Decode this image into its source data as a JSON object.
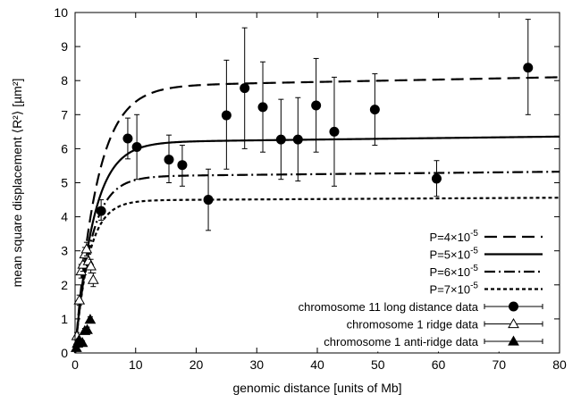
{
  "chart_data": {
    "type": "scatter",
    "xlabel": "genomic distance [units of Mb]",
    "ylabel": "mean square displacement ⟨R²⟩ [µm²]",
    "xlim": [
      0,
      80
    ],
    "ylim": [
      0,
      10
    ],
    "x_ticks": [
      "0",
      "10",
      "20",
      "30",
      "40",
      "50",
      "60",
      "70",
      "80"
    ],
    "y_ticks": [
      "0",
      "1",
      "2",
      "3",
      "4",
      "5",
      "6",
      "7",
      "8",
      "9",
      "10"
    ],
    "grid": false,
    "legend_position": "bottom-right",
    "curves": [
      {
        "label_base": "P=4×10",
        "label_exp": "-5",
        "dash": "long-dash",
        "plateau": 7.82,
        "rate": 0.28,
        "slope": 0.0035
      },
      {
        "label_base": "P=5×10",
        "label_exp": "-5",
        "dash": "solid",
        "plateau": 6.18,
        "rate": 0.33,
        "slope": 0.0022
      },
      {
        "label_base": "P=6×10",
        "label_exp": "-5",
        "dash": "dash-dot",
        "plateau": 5.18,
        "rate": 0.38,
        "slope": 0.0018
      },
      {
        "label_base": "P=7×10",
        "label_exp": "-5",
        "dash": "short-dash",
        "plateau": 4.48,
        "rate": 0.44,
        "slope": 0.001
      }
    ],
    "series": [
      {
        "name": "chromosome 11 long distance data",
        "marker": "filled-circle",
        "points": [
          {
            "x": 4.3,
            "y": 4.17,
            "lo": 3.9,
            "hi": 4.5
          },
          {
            "x": 8.7,
            "y": 6.3,
            "lo": 5.7,
            "hi": 6.9
          },
          {
            "x": 10.2,
            "y": 6.05,
            "lo": 5.1,
            "hi": 7.0
          },
          {
            "x": 15.5,
            "y": 5.68,
            "lo": 5.0,
            "hi": 6.4
          },
          {
            "x": 17.7,
            "y": 5.52,
            "lo": 4.9,
            "hi": 6.1
          },
          {
            "x": 22.0,
            "y": 4.5,
            "lo": 3.6,
            "hi": 5.4
          },
          {
            "x": 25.0,
            "y": 6.98,
            "lo": 5.4,
            "hi": 8.6
          },
          {
            "x": 28.0,
            "y": 7.78,
            "lo": 6.0,
            "hi": 9.55
          },
          {
            "x": 31.0,
            "y": 7.22,
            "lo": 5.9,
            "hi": 8.55
          },
          {
            "x": 34.0,
            "y": 6.27,
            "lo": 5.1,
            "hi": 7.45
          },
          {
            "x": 36.8,
            "y": 6.27,
            "lo": 5.05,
            "hi": 7.5
          },
          {
            "x": 39.8,
            "y": 7.27,
            "lo": 5.9,
            "hi": 8.65
          },
          {
            "x": 42.8,
            "y": 6.5,
            "lo": 4.9,
            "hi": 8.1
          },
          {
            "x": 49.5,
            "y": 7.15,
            "lo": 6.1,
            "hi": 8.2
          },
          {
            "x": 59.7,
            "y": 5.12,
            "lo": 4.6,
            "hi": 5.65
          },
          {
            "x": 74.8,
            "y": 8.38,
            "lo": 7.0,
            "hi": 9.8
          }
        ]
      },
      {
        "name": "chromosome 1 ridge data",
        "marker": "open-triangle",
        "points": [
          {
            "x": 0.3,
            "y": 0.5,
            "lo": 0.4,
            "hi": 0.6
          },
          {
            "x": 0.7,
            "y": 1.55,
            "lo": 1.4,
            "hi": 1.7
          },
          {
            "x": 1.0,
            "y": 2.4,
            "lo": 2.2,
            "hi": 2.6
          },
          {
            "x": 1.3,
            "y": 2.6,
            "lo": 2.4,
            "hi": 2.8
          },
          {
            "x": 1.6,
            "y": 2.9,
            "lo": 2.7,
            "hi": 3.1
          },
          {
            "x": 1.9,
            "y": 3.05,
            "lo": 2.85,
            "hi": 3.25
          },
          {
            "x": 2.2,
            "y": 2.7,
            "lo": 2.5,
            "hi": 2.9
          },
          {
            "x": 2.6,
            "y": 2.55,
            "lo": 2.35,
            "hi": 2.75
          },
          {
            "x": 3.0,
            "y": 2.15,
            "lo": 1.95,
            "hi": 2.35
          }
        ]
      },
      {
        "name": "chromosome 1 anti-ridge data",
        "marker": "filled-triangle",
        "points": [
          {
            "x": 0.2,
            "y": 0.15,
            "lo": 0.1,
            "hi": 0.2
          },
          {
            "x": 0.4,
            "y": 0.28,
            "lo": 0.22,
            "hi": 0.34
          },
          {
            "x": 0.6,
            "y": 0.36,
            "lo": 0.3,
            "hi": 0.42
          },
          {
            "x": 0.8,
            "y": 0.32,
            "lo": 0.26,
            "hi": 0.38
          },
          {
            "x": 1.2,
            "y": 0.3,
            "lo": 0.24,
            "hi": 0.36
          },
          {
            "x": 1.6,
            "y": 0.65,
            "lo": 0.58,
            "hi": 0.72
          },
          {
            "x": 2.0,
            "y": 0.68,
            "lo": 0.6,
            "hi": 0.76
          },
          {
            "x": 2.5,
            "y": 0.98,
            "lo": 0.9,
            "hi": 1.06
          }
        ]
      }
    ]
  }
}
